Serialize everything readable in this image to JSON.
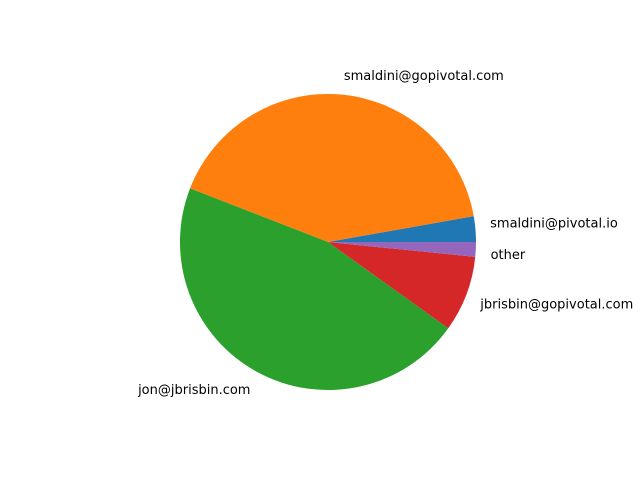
{
  "chart_data": {
    "type": "pie",
    "slices": [
      {
        "label": "smaldini@pivotal.io",
        "value": 2.8,
        "color": "#1f77b4"
      },
      {
        "label": "smaldini@gopivotal.com",
        "value": 41.3,
        "color": "#ff7f0e"
      },
      {
        "label": "jon@jbrisbin.com",
        "value": 46.0,
        "color": "#2ca02c"
      },
      {
        "label": "jbrisbin@gopivotal.com",
        "value": 8.3,
        "color": "#d62728"
      },
      {
        "label": "other",
        "value": 1.6,
        "color": "#9467bd"
      }
    ],
    "start_angle_deg": 0,
    "direction": "counterclockwise"
  }
}
